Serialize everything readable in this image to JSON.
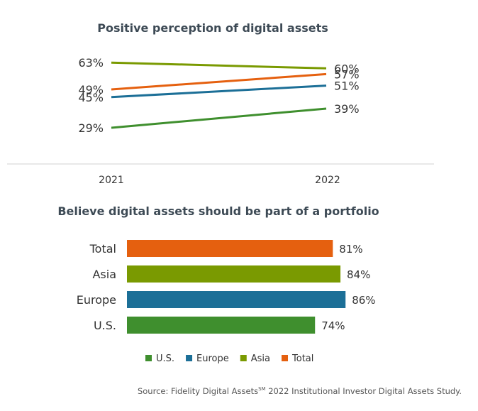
{
  "chart_data": [
    {
      "type": "line",
      "title": "Positive perception of digital assets",
      "x": [
        "2021",
        "2022"
      ],
      "y_unit": "%",
      "series": [
        {
          "name": "U.S.",
          "color": "#3f8f2e",
          "values": [
            29,
            39
          ]
        },
        {
          "name": "Europe",
          "color": "#1c6f97",
          "values": [
            45,
            51
          ]
        },
        {
          "name": "Asia",
          "color": "#7a9a01",
          "values": [
            63,
            60
          ]
        },
        {
          "name": "Total",
          "color": "#e5600f",
          "values": [
            49,
            57
          ]
        }
      ],
      "grid": false
    },
    {
      "type": "bar",
      "orientation": "horizontal",
      "title": "Believe digital assets should be part of a portfolio",
      "categories": [
        "Total",
        "Asia",
        "Europe",
        "U.S."
      ],
      "values": [
        81,
        84,
        86,
        74
      ],
      "colors": [
        "#e5600f",
        "#7a9a01",
        "#1c6f97",
        "#3f8f2e"
      ],
      "value_unit": "%",
      "legend": [
        "U.S.",
        "Europe",
        "Asia",
        "Total"
      ],
      "legend_position": "bottom"
    }
  ],
  "source": {
    "prefix": "Source: Fidelity Digital Assets",
    "superscript": "SM",
    "suffix": " 2022 Institutional Investor Digital Assets Study."
  }
}
